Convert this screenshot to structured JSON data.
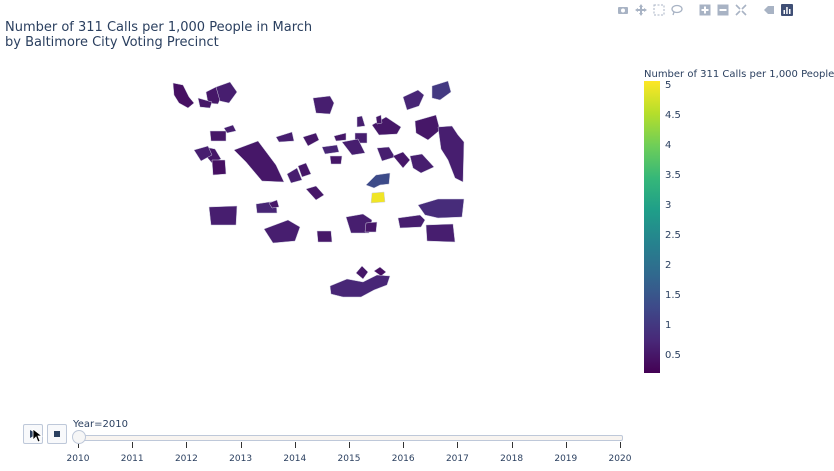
{
  "title_line1": "Number of 311 Calls per 1,000 People in March",
  "title_line2": "by Baltimore City Voting Precinct",
  "colorbar": {
    "title": "Number of 311 Calls per 1,000 People",
    "ticks": [
      "5",
      "4.5",
      "4",
      "3.5",
      "3",
      "2.5",
      "2",
      "1.5",
      "1",
      "0.5"
    ],
    "min": 0.2,
    "max": 5.0,
    "colorscale": [
      "#440154",
      "#482878",
      "#3e4989",
      "#31688e",
      "#26828e",
      "#1f9e89",
      "#35b779",
      "#6ece58",
      "#b5de2b",
      "#fde725"
    ]
  },
  "slider": {
    "current_label": "Year=2010",
    "years": [
      "2010",
      "2011",
      "2012",
      "2013",
      "2014",
      "2015",
      "2016",
      "2017",
      "2018",
      "2019",
      "2020"
    ],
    "selected_index": 0
  },
  "modebar_icons": [
    "camera-icon",
    "pan-icon",
    "box-select-icon",
    "lasso-icon",
    "zoom-in-icon",
    "zoom-out-icon",
    "reset-icon",
    "toggle-hover-icon",
    "plotly-logo-icon"
  ],
  "precinct_values": [
    0.4,
    0.5,
    0.6,
    0.5,
    0.6,
    0.7,
    1.0,
    0.5,
    0.6,
    0.5,
    0.6,
    0.4,
    0.5,
    0.6,
    0.5,
    0.7,
    0.5,
    0.6,
    0.5,
    0.6,
    0.5,
    0.6,
    0.5,
    1.3,
    4.9,
    0.6,
    0.5,
    0.6,
    0.5,
    0.6,
    0.5,
    0.6,
    0.5,
    0.6,
    0.7,
    0.5,
    0.6,
    0.5,
    0.6,
    0.5,
    0.6,
    0.8,
    0.6,
    0.7,
    0.5,
    0.4
  ]
}
